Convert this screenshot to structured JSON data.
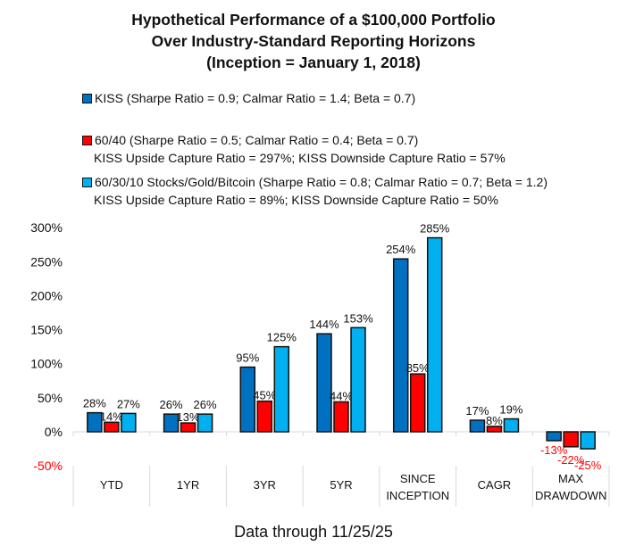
{
  "chart_data": {
    "type": "bar",
    "title": [
      "Hypothetical Performance of a $100,000 Portfolio",
      "Over Industry-Standard Reporting Horizons",
      "(Inception = January 1, 2018)"
    ],
    "categories": [
      "YTD",
      "1YR",
      "3YR",
      "5YR",
      "SINCE INCEPTION",
      "CAGR",
      "MAX DRAWDOWN"
    ],
    "category_label_lines": [
      [
        "YTD"
      ],
      [
        "1YR"
      ],
      [
        "3YR"
      ],
      [
        "5YR"
      ],
      [
        "SINCE",
        "INCEPTION"
      ],
      [
        "CAGR"
      ],
      [
        "MAX",
        "DRAWDOWN"
      ]
    ],
    "series": [
      {
        "name": "KISS",
        "legend_line1": "KISS (Sharpe Ratio = 0.9; Calmar Ratio = 1.4; Beta = 0.7)",
        "legend_line2": "",
        "color": "#0070c0",
        "values": [
          28,
          26,
          95,
          144,
          254,
          17,
          -13
        ]
      },
      {
        "name": "60/40",
        "legend_line1": "60/40 (Sharpe Ratio = 0.5; Calmar Ratio = 0.4; Beta = 0.7)",
        "legend_line2": "KISS Upside Capture Ratio = 297%; KISS Downside Capture Ratio = 57%",
        "color": "#ff0000",
        "values": [
          14,
          13,
          45,
          44,
          85,
          8,
          -22
        ]
      },
      {
        "name": "60/30/10 Stocks/Gold/Bitcoin",
        "legend_line1": "60/30/10 Stocks/Gold/Bitcoin (Sharpe Ratio = 0.8; Calmar Ratio = 0.7; Beta = 1.2)",
        "legend_line2": "KISS Upside Capture Ratio = 89%; KISS Downside Capture Ratio = 50%",
        "color": "#00b0f0",
        "values": [
          27,
          26,
          125,
          153,
          285,
          19,
          -25
        ]
      }
    ],
    "y_ticks": [
      300,
      250,
      200,
      150,
      100,
      50,
      0,
      -50
    ],
    "y_tick_format": "percent",
    "negative_tick_color": "#ff0000",
    "negative_label_color": "#ff0000",
    "ylim": [
      -50,
      300
    ],
    "xlabel": "",
    "ylabel": "",
    "grid": false,
    "legend_position": "top-left",
    "footer": "Data through 11/25/25"
  }
}
